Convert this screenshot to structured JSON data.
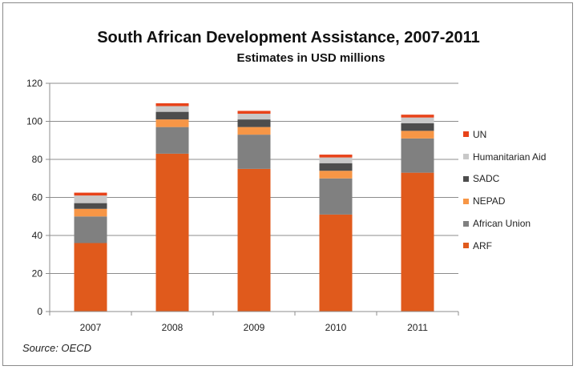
{
  "chart_data": {
    "type": "bar",
    "stacked": true,
    "title": "South African Development Assistance, 2007-2011",
    "subtitle": "Estimates in USD millions",
    "source": "Source: OECD",
    "xlabel": "",
    "ylabel": "",
    "ylim": [
      0,
      120
    ],
    "yticks": [
      0,
      20,
      40,
      60,
      80,
      100,
      120
    ],
    "grid": true,
    "legend_position": "right",
    "categories": [
      "2007",
      "2008",
      "2009",
      "2010",
      "2011"
    ],
    "series": [
      {
        "name": "ARF",
        "color": "#e05a1c",
        "values": [
          36,
          83,
          75,
          51,
          73
        ]
      },
      {
        "name": "African Union",
        "color": "#808080",
        "values": [
          14,
          14,
          18,
          19,
          18
        ]
      },
      {
        "name": "NEPAD",
        "color": "#f79646",
        "values": [
          4,
          4,
          4,
          4,
          4
        ]
      },
      {
        "name": "SADC",
        "color": "#4d4d4d",
        "values": [
          3,
          4,
          4,
          4,
          4
        ]
      },
      {
        "name": "Humanitarian Aid",
        "color": "#c8c8c8",
        "values": [
          4,
          3,
          3,
          3,
          3
        ]
      },
      {
        "name": "UN",
        "color": "#e8431a",
        "values": [
          1.5,
          1.5,
          1.5,
          1.5,
          1.5
        ]
      }
    ]
  }
}
